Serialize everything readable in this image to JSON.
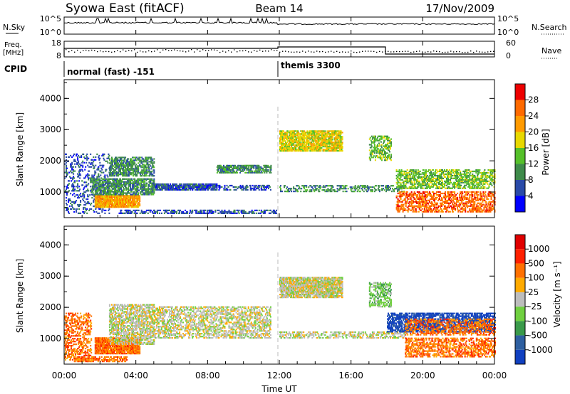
{
  "header": {
    "station": "Syowa East (fitACF)",
    "beam": "Beam 14",
    "date": "17/Nov/2009"
  },
  "top_panels": {
    "nsky_label": "N.Sky",
    "nsky_ticks": [
      "10^5",
      "10^0"
    ],
    "nsearch_label": "N.Search",
    "nsearch_ticks": [
      "10^5",
      "10^0"
    ],
    "freq_label_1": "Freq.",
    "freq_label_2": "[MHz]",
    "freq_ticks": [
      "18",
      "8"
    ],
    "nave_label": "Nave",
    "nave_ticks": [
      "60",
      "0"
    ],
    "cpid_label": "CPID",
    "cpid_segments": [
      {
        "start_hour": 0,
        "label": "normal (fast) -151"
      },
      {
        "start_hour": 12,
        "label": "themis 3300"
      }
    ]
  },
  "x_axis": {
    "title": "Time UT",
    "range_hours": [
      0,
      24
    ],
    "ticks": [
      0,
      4,
      8,
      12,
      16,
      20,
      24
    ],
    "tick_labels": [
      "00:00",
      "04:00",
      "08:00",
      "12:00",
      "16:00",
      "20:00",
      "00:00"
    ]
  },
  "power_panel": {
    "ylabel": "Slant Range [km]",
    "ylim": [
      180,
      4600
    ],
    "yticks": [
      "1000",
      "2000",
      "3000",
      "4000"
    ],
    "colorbar_label": "Power [dB]",
    "colorbar_ticks": [
      "4",
      "8",
      "12",
      "16",
      "20",
      "24",
      "28"
    ],
    "colors": [
      "#0000ff",
      "#2a4aa8",
      "#3e8a4a",
      "#55c02a",
      "#e8d800",
      "#ff9a00",
      "#ff6a00",
      "#ee0000"
    ]
  },
  "velocity_panel": {
    "ylabel": "Slant Range [km]",
    "ylim": [
      180,
      4600
    ],
    "yticks": [
      "1000",
      "2000",
      "3000",
      "4000"
    ],
    "colorbar_label": "Velocity [m s⁻¹]",
    "colorbar_ticks": [
      "1000",
      "500",
      "100",
      "25",
      "-25",
      "-100",
      "-500",
      "-1000"
    ],
    "colors": [
      "#1040c0",
      "#2e5fa0",
      "#3a9a4a",
      "#70d040",
      "#bdbdbd",
      "#ffaa00",
      "#ff7000",
      "#ff2000",
      "#e00000"
    ]
  },
  "chart_data": [
    {
      "type": "heatmap",
      "title": "Power",
      "xlabel": "Time UT",
      "ylabel": "Slant Range [km]",
      "xlim": [
        0,
        24
      ],
      "ylim": [
        180,
        4600
      ],
      "colorbar_range": [
        0,
        32
      ],
      "regions": [
        {
          "t": [
            0,
            2.5
          ],
          "r": [
            300,
            2200
          ],
          "level": 1,
          "density": 0.18
        },
        {
          "t": [
            1.7,
            4.2
          ],
          "r": [
            500,
            900
          ],
          "level": 5,
          "density": 0.85
        },
        {
          "t": [
            1.5,
            5.0
          ],
          "r": [
            900,
            1400
          ],
          "level": 2,
          "density": 0.6
        },
        {
          "t": [
            2.5,
            5.0
          ],
          "r": [
            1500,
            2100
          ],
          "level": 2,
          "density": 0.55
        },
        {
          "t": [
            5.0,
            8.5
          ],
          "r": [
            1050,
            1250
          ],
          "level": 1,
          "density": 0.65
        },
        {
          "t": [
            8.5,
            11.5
          ],
          "r": [
            1600,
            1850
          ],
          "level": 2,
          "density": 0.6
        },
        {
          "t": [
            6.0,
            11.5
          ],
          "r": [
            1050,
            1200
          ],
          "level": 1,
          "density": 0.35
        },
        {
          "t": [
            3.0,
            11.8
          ],
          "r": [
            300,
            400
          ],
          "level": 1,
          "density": 0.4
        },
        {
          "t": [
            12.0,
            15.5
          ],
          "r": [
            2300,
            2950
          ],
          "level": 4,
          "density": 0.7
        },
        {
          "t": [
            12.0,
            19.0
          ],
          "r": [
            1000,
            1200
          ],
          "level": 2,
          "density": 0.3
        },
        {
          "t": [
            17.0,
            18.2
          ],
          "r": [
            2000,
            2800
          ],
          "level": 3,
          "density": 0.4
        },
        {
          "t": [
            18.5,
            24.0
          ],
          "r": [
            1100,
            1700
          ],
          "level": 3,
          "density": 0.45
        },
        {
          "t": [
            18.5,
            24.0
          ],
          "r": [
            350,
            1000
          ],
          "level": 6,
          "density": 0.45
        }
      ]
    },
    {
      "type": "heatmap",
      "title": "Velocity",
      "xlabel": "Time UT",
      "ylabel": "Slant Range [km]",
      "xlim": [
        0,
        24
      ],
      "ylim": [
        180,
        4600
      ],
      "colorbar_range": [
        -1000,
        1000
      ],
      "regions": [
        {
          "t": [
            0,
            1.5
          ],
          "r": [
            300,
            1800
          ],
          "level": 6,
          "density": 0.35
        },
        {
          "t": [
            1.7,
            4.2
          ],
          "r": [
            500,
            1000
          ],
          "level": 6,
          "density": 0.85
        },
        {
          "t": [
            2.5,
            5.0
          ],
          "r": [
            800,
            2100
          ],
          "level": 4,
          "density": 0.5
        },
        {
          "t": [
            5.0,
            11.5
          ],
          "r": [
            1000,
            2000
          ],
          "level": 4,
          "density": 0.4
        },
        {
          "t": [
            0.5,
            3.5
          ],
          "r": [
            250,
            400
          ],
          "level": 6,
          "density": 0.5
        },
        {
          "t": [
            12.0,
            15.5
          ],
          "r": [
            2300,
            2950
          ],
          "level": 4,
          "density": 0.75
        },
        {
          "t": [
            12.0,
            19.0
          ],
          "r": [
            1000,
            1200
          ],
          "level": 4,
          "density": 0.4
        },
        {
          "t": [
            17.0,
            18.2
          ],
          "r": [
            2000,
            2800
          ],
          "level": 3,
          "density": 0.4
        },
        {
          "t": [
            18.0,
            24.0
          ],
          "r": [
            1200,
            1800
          ],
          "level": 0,
          "density": 0.55
        },
        {
          "t": [
            19.0,
            24.0
          ],
          "r": [
            1100,
            1600
          ],
          "level": 6,
          "density": 0.35
        },
        {
          "t": [
            19.0,
            24.0
          ],
          "r": [
            400,
            1000
          ],
          "level": 6,
          "density": 0.45
        }
      ]
    }
  ]
}
